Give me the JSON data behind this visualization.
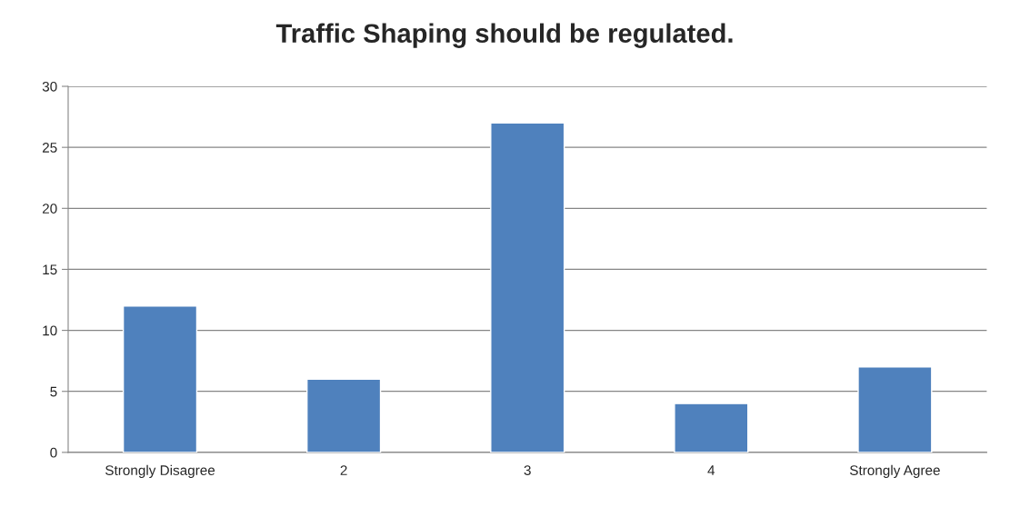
{
  "chart_data": {
    "type": "bar",
    "title": "Traffic Shaping should be regulated.",
    "categories": [
      "Strongly Disagree",
      "2",
      "3",
      "4",
      "Strongly Agree"
    ],
    "values": [
      12,
      6,
      27,
      4,
      7
    ],
    "color": "#4f81bd",
    "ylim": [
      0,
      30
    ],
    "yticks": [
      0,
      5,
      10,
      15,
      20,
      25,
      30
    ],
    "grid": "y",
    "legend": false
  }
}
